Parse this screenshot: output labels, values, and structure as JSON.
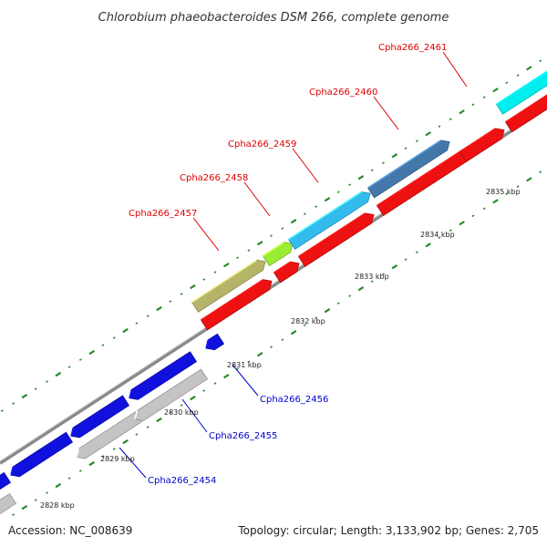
{
  "title": "Chlorobium phaeobacteroides DSM 266, complete genome",
  "footer": {
    "accession": "Accession: NC_008639",
    "summary": "Topology: circular; Length: 3,133,902 bp; Genes: 2,705"
  },
  "colors": {
    "forward_label": "#dd0000",
    "reverse_label": "#0000cc",
    "backbone": "#888888",
    "tick": "#228822"
  },
  "genes_upper": [
    {
      "name": "Cpha266_2457",
      "color": "#b5b56a"
    },
    {
      "name": "Cpha266_2458",
      "color": "#99ee33"
    },
    {
      "name": "Cpha266_2459",
      "color": "#33bbee"
    },
    {
      "name": "Cpha266_2460",
      "color": "#4477aa"
    },
    {
      "name": "Cpha266_2461",
      "color": "#00eeee"
    }
  ],
  "genes_lower": [
    {
      "name": "Cpha266_2454"
    },
    {
      "name": "Cpha266_2455"
    },
    {
      "name": "Cpha266_2456"
    }
  ],
  "kbp_labels": [
    "2828 kbp",
    "2829 kbp",
    "2830 kbp",
    "2831 kbp",
    "2832 kbp",
    "2833 kbp",
    "2834 kbp",
    "2835 kbp"
  ]
}
